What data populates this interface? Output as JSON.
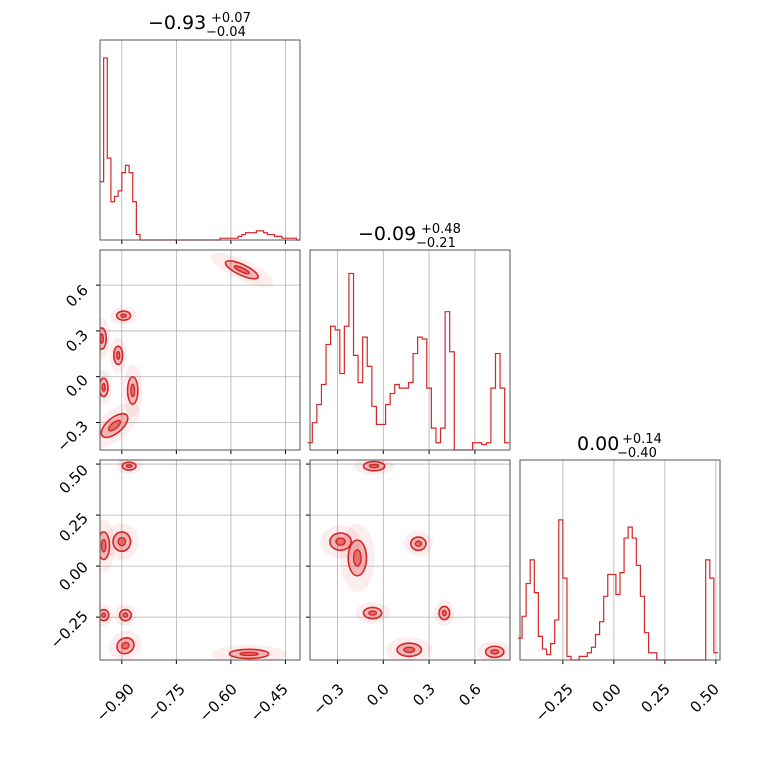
{
  "titles": {
    "p1": {
      "base": "−0.93",
      "sup": "+0.07",
      "sub": "−0.04"
    },
    "p2": {
      "base": "−0.09",
      "sup": "+0.48",
      "sub": "−0.21"
    },
    "p3": {
      "base": "0.00",
      "sup": "+0.14",
      "sub": "−0.40"
    }
  },
  "ticks": {
    "p1_x": [
      "−0.90",
      "−0.75",
      "−0.60",
      "−0.45"
    ],
    "p2_y": [
      "0.6",
      "0.3",
      "0.0",
      "−0.3"
    ],
    "p2_x": [
      "−0.3",
      "0.0",
      "0.3",
      "0.6"
    ],
    "p3_y": [
      "0.50",
      "0.25",
      "0.00",
      "−0.25"
    ],
    "p3_x": [
      "−0.25",
      "0.00",
      "0.25",
      "0.50"
    ]
  },
  "chart_data": {
    "type": "corner",
    "color": "#d62728",
    "grid": true,
    "ranges": {
      "p1": [
        -0.96,
        -0.41
      ],
      "p2": [
        -0.48,
        0.83
      ],
      "p3": [
        -0.46,
        0.52
      ]
    },
    "marginals": {
      "p1": {
        "x": [
          -0.955,
          -0.945,
          -0.935,
          -0.925,
          -0.915,
          -0.905,
          -0.895,
          -0.885,
          -0.875,
          -0.865,
          -0.855,
          -0.845,
          -0.835,
          -0.825,
          -0.815,
          -0.805,
          -0.795,
          -0.785,
          -0.775,
          -0.765,
          -0.755,
          -0.745,
          -0.735,
          -0.725,
          -0.715,
          -0.705,
          -0.695,
          -0.685,
          -0.675,
          -0.665,
          -0.655,
          -0.645,
          -0.635,
          -0.625,
          -0.615,
          -0.605,
          -0.595,
          -0.585,
          -0.575,
          -0.565,
          -0.555,
          -0.545,
          -0.535,
          -0.525,
          -0.515,
          -0.505,
          -0.495,
          -0.485,
          -0.475,
          -0.465,
          -0.455,
          -0.445,
          -0.435,
          -0.425,
          -0.415
        ],
        "y": [
          0.32,
          1.0,
          0.45,
          0.21,
          0.24,
          0.27,
          0.37,
          0.41,
          0.37,
          0.21,
          0.03,
          0,
          0,
          0,
          0,
          0,
          0,
          0,
          0,
          0,
          0,
          0,
          0,
          0,
          0,
          0,
          0,
          0,
          0,
          0,
          0,
          0,
          0,
          0.01,
          0.01,
          0.01,
          0.01,
          0.01,
          0.02,
          0.03,
          0.04,
          0.04,
          0.04,
          0.05,
          0.05,
          0.04,
          0.03,
          0.03,
          0.02,
          0.02,
          0.01,
          0.01,
          0.01,
          0.01,
          0
        ]
      },
      "p2": {
        "x": [
          -0.48,
          -0.45,
          -0.42,
          -0.39,
          -0.36,
          -0.33,
          -0.3,
          -0.27,
          -0.24,
          -0.21,
          -0.18,
          -0.15,
          -0.12,
          -0.09,
          -0.06,
          -0.03,
          0.0,
          0.03,
          0.06,
          0.09,
          0.12,
          0.15,
          0.18,
          0.21,
          0.24,
          0.27,
          0.3,
          0.33,
          0.36,
          0.39,
          0.42,
          0.45,
          0.48,
          0.51,
          0.54,
          0.57,
          0.6,
          0.63,
          0.66,
          0.69,
          0.72,
          0.75,
          0.78,
          0.81
        ],
        "y": [
          0.04,
          0.15,
          0.25,
          0.36,
          0.58,
          0.68,
          0.66,
          0.42,
          0.68,
          0.97,
          0.52,
          0.37,
          0.62,
          0.46,
          0.24,
          0.14,
          0.14,
          0.25,
          0.31,
          0.36,
          0.34,
          0.34,
          0.37,
          0.53,
          0.62,
          0.61,
          0.34,
          0.12,
          0.04,
          0.12,
          0.76,
          0.54,
          0.0,
          0.0,
          0.0,
          0.0,
          0.04,
          0.04,
          0.03,
          0.04,
          0.34,
          0.53,
          0.34,
          0.04
        ]
      },
      "p3": {
        "x": [
          -0.46,
          -0.44,
          -0.42,
          -0.4,
          -0.38,
          -0.36,
          -0.34,
          -0.32,
          -0.3,
          -0.28,
          -0.26,
          -0.24,
          -0.22,
          -0.2,
          -0.18,
          -0.16,
          -0.14,
          -0.12,
          -0.1,
          -0.08,
          -0.06,
          -0.04,
          -0.02,
          0.0,
          0.02,
          0.04,
          0.06,
          0.08,
          0.1,
          0.12,
          0.14,
          0.16,
          0.18,
          0.2,
          0.22,
          0.24,
          0.26,
          0.28,
          0.3,
          0.32,
          0.34,
          0.36,
          0.38,
          0.4,
          0.42,
          0.44,
          0.46,
          0.48,
          0.5
        ],
        "y": [
          0.12,
          0.24,
          0.42,
          0.55,
          0.37,
          0.13,
          0.06,
          0.03,
          0.09,
          0.22,
          0.77,
          0.45,
          0.02,
          0.0,
          0.0,
          0.02,
          0.02,
          0.04,
          0.07,
          0.14,
          0.21,
          0.35,
          0.47,
          0.47,
          0.36,
          0.48,
          0.67,
          0.73,
          0.67,
          0.52,
          0.35,
          0.15,
          0.04,
          0.04,
          0.0,
          0.0,
          0.0,
          0.0,
          0.0,
          0.0,
          0.0,
          0.0,
          0.0,
          0.0,
          0.0,
          0.0,
          0.55,
          0.45,
          0.04
        ]
      }
    },
    "joint_blobs": {
      "p1_p2": [
        {
          "x": -0.57,
          "y": 0.7,
          "sx": 0.045,
          "sy": 0.025,
          "rot": -25
        },
        {
          "x": -0.955,
          "y": 0.25,
          "sx": 0.008,
          "sy": 0.06,
          "rot": 0
        },
        {
          "x": -0.895,
          "y": 0.4,
          "sx": 0.015,
          "sy": 0.02,
          "rot": 0
        },
        {
          "x": -0.91,
          "y": 0.14,
          "sx": 0.008,
          "sy": 0.05,
          "rot": 0
        },
        {
          "x": -0.87,
          "y": -0.09,
          "sx": 0.01,
          "sy": 0.08,
          "rot": 0
        },
        {
          "x": -0.95,
          "y": -0.07,
          "sx": 0.008,
          "sy": 0.05,
          "rot": 0
        },
        {
          "x": -0.92,
          "y": -0.32,
          "sx": 0.04,
          "sy": 0.04,
          "rot": 40
        }
      ],
      "p1_p3": [
        {
          "x": -0.88,
          "y": 0.49,
          "sx": 0.015,
          "sy": 0.012,
          "rot": 0
        },
        {
          "x": -0.95,
          "y": 0.1,
          "sx": 0.012,
          "sy": 0.06,
          "rot": 0
        },
        {
          "x": -0.9,
          "y": 0.12,
          "sx": 0.02,
          "sy": 0.04,
          "rot": 0
        },
        {
          "x": -0.95,
          "y": -0.24,
          "sx": 0.01,
          "sy": 0.02,
          "rot": 0
        },
        {
          "x": -0.89,
          "y": -0.24,
          "sx": 0.012,
          "sy": 0.02,
          "rot": 0
        },
        {
          "x": -0.89,
          "y": -0.39,
          "sx": 0.02,
          "sy": 0.03,
          "rot": 30
        },
        {
          "x": -0.55,
          "y": -0.43,
          "sx": 0.05,
          "sy": 0.015,
          "rot": 0
        }
      ],
      "p2_p3": [
        {
          "x": -0.06,
          "y": 0.49,
          "sx": 0.06,
          "sy": 0.015,
          "rot": 0
        },
        {
          "x": -0.28,
          "y": 0.12,
          "sx": 0.06,
          "sy": 0.035,
          "rot": 0
        },
        {
          "x": -0.17,
          "y": 0.04,
          "sx": 0.05,
          "sy": 0.08,
          "rot": 0
        },
        {
          "x": 0.23,
          "y": 0.11,
          "sx": 0.04,
          "sy": 0.025,
          "rot": 0
        },
        {
          "x": -0.07,
          "y": -0.23,
          "sx": 0.05,
          "sy": 0.02,
          "rot": 0
        },
        {
          "x": 0.4,
          "y": -0.23,
          "sx": 0.025,
          "sy": 0.025,
          "rot": 0
        },
        {
          "x": 0.17,
          "y": -0.41,
          "sx": 0.07,
          "sy": 0.025,
          "rot": 0
        },
        {
          "x": 0.73,
          "y": -0.42,
          "sx": 0.05,
          "sy": 0.02,
          "rot": 0
        }
      ]
    }
  }
}
